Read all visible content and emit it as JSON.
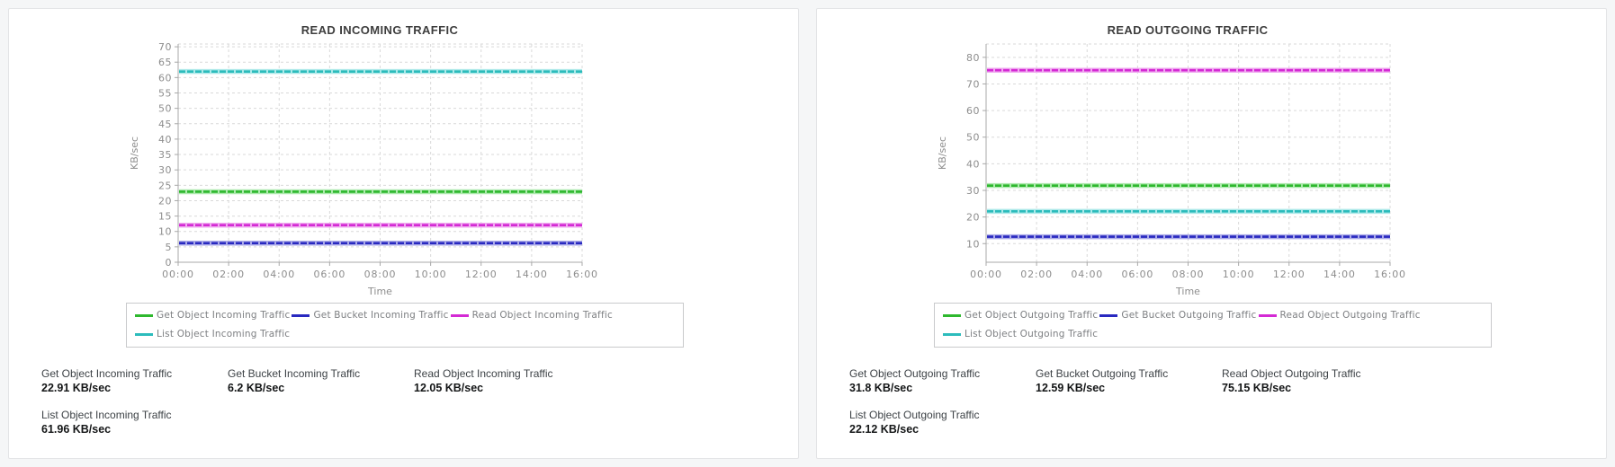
{
  "page": {
    "background": "#f5f6f7",
    "card_background": "#ffffff",
    "card_border": "#e3e4e6",
    "grid_color": "#d9d9d9",
    "axis_color": "#a8a8a8",
    "tick_text_color": "#8d8d8d",
    "title_color": "#3e3e3e",
    "legend_text_color": "#7d7f82",
    "legend_border_color": "#c9cacc"
  },
  "chart_data": [
    {
      "type": "line",
      "title": "READ INCOMING TRAFFIC",
      "xlabel": "Time",
      "ylabel": "KB/sec",
      "ylim": [
        0,
        70.9
      ],
      "yticks": [
        0,
        5,
        10,
        15,
        20,
        25,
        30,
        35,
        40,
        45,
        50,
        55,
        60,
        65,
        70
      ],
      "xticks": [
        "00:00",
        "02:00",
        "04:00",
        "06:00",
        "08:00",
        "10:00",
        "12:00",
        "14:00",
        "16:00"
      ],
      "x_range": [
        "00:00",
        "16:00"
      ],
      "grid": true,
      "legend_position": "bottom",
      "series": [
        {
          "name": "Get Object Incoming Traffic",
          "shape": "flat",
          "value": 22.91,
          "color": "#2eb82e",
          "halo": "#aee9ae"
        },
        {
          "name": "Get Bucket Incoming Traffic",
          "shape": "flat",
          "value": 6.2,
          "color": "#2929c0",
          "halo": "#abaae8"
        },
        {
          "name": "Read Object Incoming Traffic",
          "shape": "flat",
          "value": 12.05,
          "color": "#d42ad4",
          "halo": "#f0abf0"
        },
        {
          "name": "List Object Incoming Traffic",
          "shape": "flat",
          "value": 61.96,
          "color": "#2cbcbc",
          "halo": "#ace9e9"
        }
      ],
      "stats": [
        {
          "label": "Get Object Incoming Traffic",
          "value": "22.91 KB/sec"
        },
        {
          "label": "Get Bucket Incoming Traffic",
          "value": "6.2 KB/sec"
        },
        {
          "label": "Read Object Incoming Traffic",
          "value": "12.05 KB/sec"
        },
        {
          "label": "List Object Incoming Traffic",
          "value": "61.96 KB/sec"
        }
      ]
    },
    {
      "type": "line",
      "title": "READ OUTGOING TRAFFIC",
      "xlabel": "Time",
      "ylabel": "KB/sec",
      "ylim": [
        3,
        85
      ],
      "yticks": [
        10,
        20,
        30,
        40,
        50,
        60,
        70,
        80
      ],
      "xticks": [
        "00:00",
        "02:00",
        "04:00",
        "06:00",
        "08:00",
        "10:00",
        "12:00",
        "14:00",
        "16:00"
      ],
      "x_range": [
        "00:00",
        "16:00"
      ],
      "grid": true,
      "legend_position": "bottom",
      "series": [
        {
          "name": "Get Object Outgoing Traffic",
          "shape": "flat",
          "value": 31.8,
          "color": "#2eb82e",
          "halo": "#aee9ae"
        },
        {
          "name": "Get Bucket Outgoing Traffic",
          "shape": "flat",
          "value": 12.59,
          "color": "#2929c0",
          "halo": "#abaae8"
        },
        {
          "name": "Read Object Outgoing Traffic",
          "shape": "flat",
          "value": 75.15,
          "color": "#d42ad4",
          "halo": "#f0abf0"
        },
        {
          "name": "List Object Outgoing Traffic",
          "shape": "flat",
          "value": 22.12,
          "color": "#2cbcbc",
          "halo": "#ace9e9"
        }
      ],
      "stats": [
        {
          "label": "Get Object Outgoing Traffic",
          "value": "31.8 KB/sec"
        },
        {
          "label": "Get Bucket Outgoing Traffic",
          "value": "12.59 KB/sec"
        },
        {
          "label": "Read Object Outgoing Traffic",
          "value": "75.15 KB/sec"
        },
        {
          "label": "List Object Outgoing Traffic",
          "value": "22.12 KB/sec"
        }
      ]
    }
  ]
}
